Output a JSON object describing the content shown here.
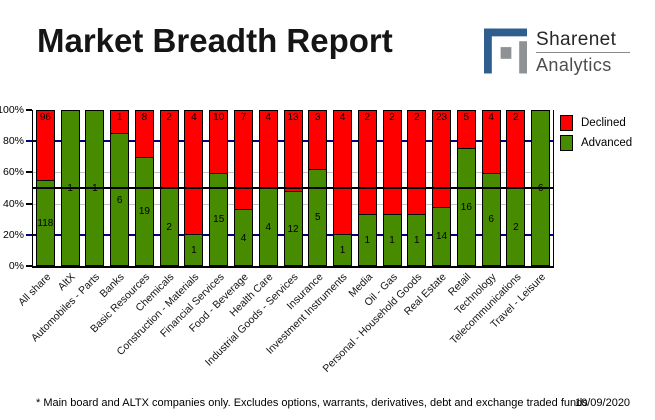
{
  "header": {
    "title": "Market Breadth Report",
    "logo": {
      "name": "Sharenet",
      "tagline": "Analytics",
      "colors": {
        "primary": "#2d5e8d",
        "secondary": "#8f9295"
      }
    }
  },
  "chart_data": {
    "type": "bar",
    "stacked": true,
    "orientation": "vertical",
    "title": "Market Breadth Report",
    "categories": [
      "All share",
      "AltX",
      "Automobiles - Parts",
      "Banks",
      "Basic Resources",
      "Chemicals",
      "Construction - Materials",
      "Financial Services",
      "Food - Beverage",
      "Health Care",
      "Industrial Goods - Services",
      "Insurance",
      "Investment Instruments",
      "Media",
      "Oil - Gas",
      "Personal - Household Goods",
      "Real Estate",
      "Retail",
      "Technology",
      "Telecommunications",
      "Travel - Leisure"
    ],
    "series": [
      {
        "name": "Declined",
        "color": "#ff0000",
        "values": [
          96,
          0,
          0,
          1,
          8,
          2,
          4,
          10,
          7,
          4,
          13,
          3,
          4,
          2,
          2,
          2,
          23,
          5,
          4,
          2,
          0
        ]
      },
      {
        "name": "Advanced",
        "color": "#478b00",
        "values": [
          118,
          1,
          1,
          6,
          19,
          2,
          1,
          15,
          4,
          4,
          12,
          5,
          1,
          1,
          1,
          1,
          14,
          16,
          6,
          2,
          6
        ]
      }
    ],
    "value_display": "percent_of_total_stacked_to_100",
    "bar_value_labels": true,
    "y_axis": {
      "min": 0,
      "max": 100,
      "unit": "%",
      "ticks": [
        {
          "label": "100%",
          "pct": 100
        },
        {
          "label": "80%",
          "pct": 80
        },
        {
          "label": "60%",
          "pct": 60
        },
        {
          "label": "40%",
          "pct": 40
        },
        {
          "label": "20%",
          "pct": 20
        },
        {
          "label": "0%",
          "pct": 0
        }
      ]
    },
    "gridlines": [
      {
        "pct": 80,
        "color": "#000080",
        "weight": 2
      },
      {
        "pct": 60,
        "color": "#c4c4c4",
        "weight": 1
      },
      {
        "pct": 40,
        "color": "#c4c4c4",
        "weight": 1
      },
      {
        "pct": 20,
        "color": "#000080",
        "weight": 2
      }
    ],
    "midline": {
      "pct": 50,
      "color": "#000000"
    },
    "legend": {
      "position": "right",
      "items": [
        {
          "label": "Declined",
          "color": "#ff0000"
        },
        {
          "label": "Advanced",
          "color": "#478b00"
        }
      ]
    }
  },
  "footer": {
    "note": "* Main board and ALTX companies only. Excludes options, warrants, derivatives, debt and exchange traded funds",
    "date": "10/09/2020"
  }
}
